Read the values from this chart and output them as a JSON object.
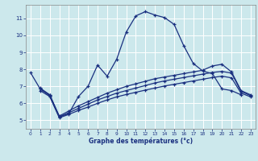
{
  "xlabel": "Graphe des températures (°c)",
  "background_color": "#cce8ec",
  "grid_color": "#ffffff",
  "line_color": "#1a3080",
  "xlim": [
    -0.5,
    23.5
  ],
  "ylim": [
    4.5,
    11.8
  ],
  "xticks": [
    0,
    1,
    2,
    3,
    4,
    5,
    6,
    7,
    8,
    9,
    10,
    11,
    12,
    13,
    14,
    15,
    16,
    17,
    18,
    19,
    20,
    21,
    22,
    23
  ],
  "yticks": [
    5,
    6,
    7,
    8,
    9,
    10,
    11
  ],
  "series1_x": [
    0,
    1,
    2,
    3,
    4,
    5,
    6,
    7,
    8,
    9,
    10,
    11,
    12,
    13,
    14,
    15,
    16,
    17,
    18,
    19,
    20,
    21,
    22
  ],
  "series1_y": [
    7.8,
    6.85,
    6.5,
    5.2,
    5.4,
    6.4,
    7.0,
    8.25,
    7.6,
    8.6,
    10.2,
    11.15,
    11.4,
    11.2,
    11.05,
    10.65,
    9.4,
    8.35,
    7.9,
    7.75,
    6.85,
    6.75,
    6.5
  ],
  "series_upper_x": [
    1,
    2,
    3,
    4,
    5,
    6,
    7,
    8,
    9,
    10,
    11,
    12,
    13,
    14,
    15,
    16,
    17,
    18,
    19,
    20,
    21,
    22,
    23
  ],
  "series_upper_y": [
    6.9,
    6.5,
    5.25,
    5.55,
    5.85,
    6.1,
    6.35,
    6.6,
    6.8,
    7.0,
    7.15,
    7.3,
    7.45,
    7.55,
    7.65,
    7.75,
    7.85,
    7.95,
    8.2,
    8.3,
    7.85,
    6.75,
    6.5
  ],
  "series_mid_x": [
    1,
    2,
    3,
    4,
    5,
    6,
    7,
    8,
    9,
    10,
    11,
    12,
    13,
    14,
    15,
    16,
    17,
    18,
    19,
    20,
    21,
    22,
    23
  ],
  "series_mid_y": [
    6.85,
    6.45,
    5.2,
    5.45,
    5.7,
    5.95,
    6.2,
    6.4,
    6.6,
    6.75,
    6.9,
    7.05,
    7.2,
    7.32,
    7.42,
    7.52,
    7.62,
    7.72,
    7.82,
    7.88,
    7.78,
    6.7,
    6.45
  ],
  "series_lower_x": [
    1,
    2,
    3,
    4,
    5,
    6,
    7,
    8,
    9,
    10,
    11,
    12,
    13,
    14,
    15,
    16,
    17,
    18,
    19,
    20,
    21,
    22,
    23
  ],
  "series_lower_y": [
    6.75,
    6.4,
    5.15,
    5.35,
    5.58,
    5.78,
    6.0,
    6.2,
    6.38,
    6.52,
    6.65,
    6.78,
    6.9,
    7.02,
    7.12,
    7.22,
    7.32,
    7.42,
    7.52,
    7.6,
    7.5,
    6.6,
    6.38
  ]
}
